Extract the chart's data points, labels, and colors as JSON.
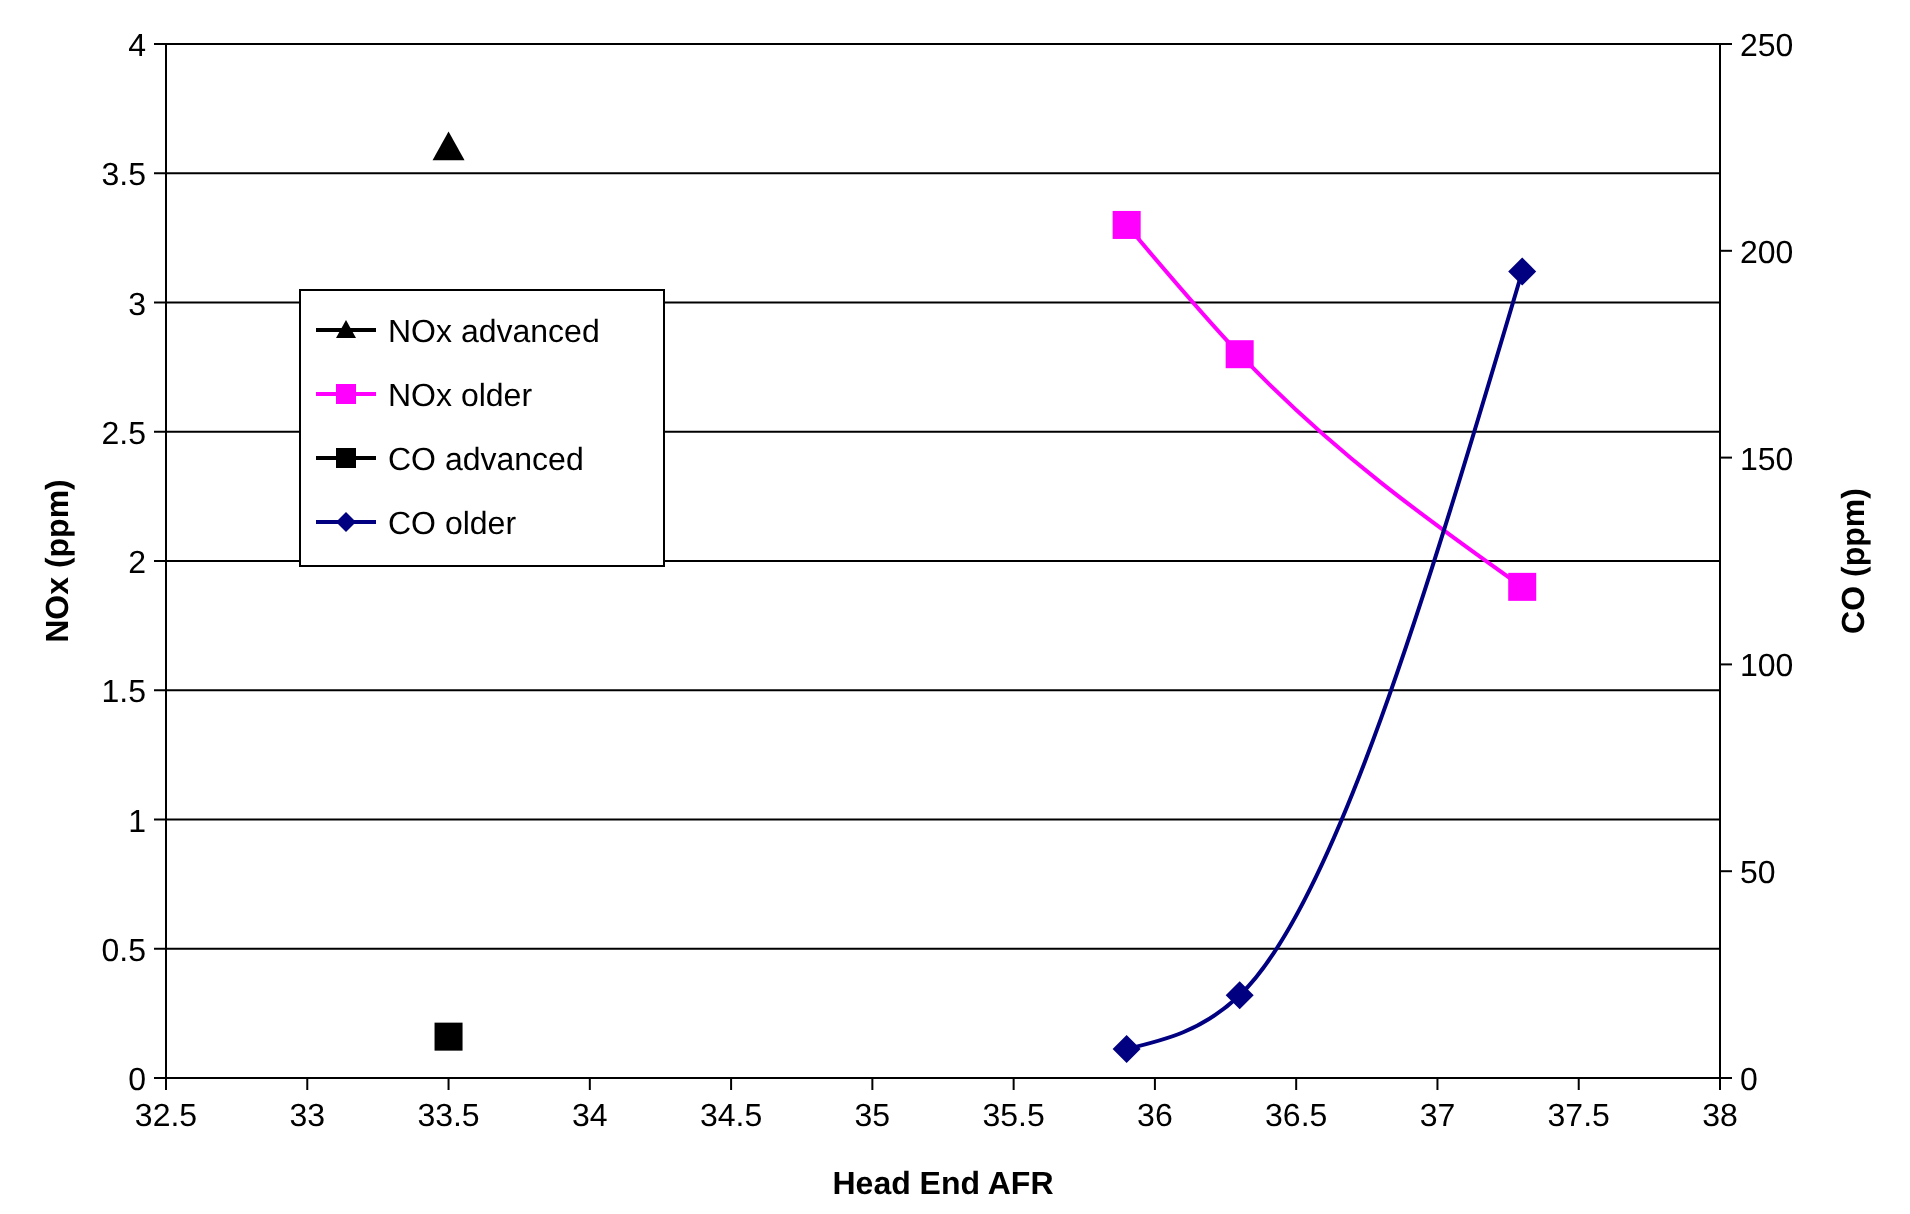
{
  "chart_data": {
    "type": "line",
    "xlabel": "Head End AFR",
    "ylabel": "NOx (ppm)",
    "y2label": "CO (ppm)",
    "xlim": [
      32.5,
      38
    ],
    "xticks": [
      32.5,
      33,
      33.5,
      34,
      34.5,
      35,
      35.5,
      36,
      36.5,
      37,
      37.5,
      38
    ],
    "ylim": [
      0,
      4
    ],
    "yticks": [
      0,
      0.5,
      1,
      1.5,
      2,
      2.5,
      3,
      3.5,
      4
    ],
    "y2lim": [
      0,
      250
    ],
    "y2ticks": [
      0,
      50,
      100,
      150,
      200,
      250
    ],
    "grid": "y",
    "legend": "left",
    "series": [
      {
        "name": "NOx advanced",
        "color": "#000000",
        "marker": "triangle",
        "x": [
          33.5
        ],
        "values": [
          3.6
        ]
      },
      {
        "name": "NOx older",
        "color": "#ff00ff",
        "marker": "square",
        "x": [
          35.9,
          36.3,
          37.3
        ],
        "values": [
          3.3,
          2.8,
          1.9
        ]
      },
      {
        "name": "CO advanced",
        "color": "#000000",
        "marker": "square",
        "axis": "y2",
        "x": [
          33.5
        ],
        "values": [
          10
        ]
      },
      {
        "name": "CO older",
        "color": "#000080",
        "marker": "diamond",
        "axis": "y2",
        "x": [
          35.9,
          36.3,
          37.3
        ],
        "values": [
          7,
          20,
          195
        ]
      }
    ]
  }
}
